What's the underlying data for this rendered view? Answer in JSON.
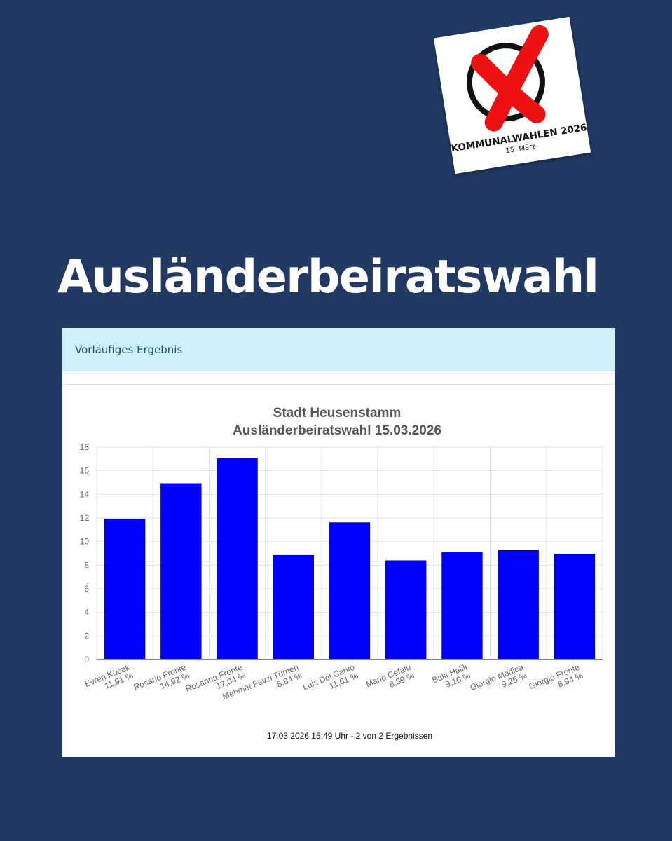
{
  "logo": {
    "title": "KOMMUNALWAHLEN 2026",
    "date": "15. März",
    "icon": "ballot-cross-icon",
    "colors": {
      "cross": "#ee1111",
      "circle": "#111111"
    }
  },
  "page": {
    "headline": "Ausländerbeiratswahl",
    "background": "#213963"
  },
  "panel": {
    "header": "Vorläufiges Ergebnis",
    "header_color": "#cdf0f9"
  },
  "chart_data": {
    "type": "bar",
    "title": "Stadt Heusenstamm",
    "subtitle": "Ausländerbeiratswahl 15.03.2026",
    "categories": [
      "Evren Koçak",
      "Rosario Fronte",
      "Rosanna Fronte",
      "Mehmet Fevzi Tümen",
      "Luis Del Canto",
      "Mario Cefalu",
      "Baki Halili",
      "Giorgio Modica",
      "Giorgio Fronte"
    ],
    "value_labels": [
      "11,91 %",
      "14,92 %",
      "17,04 %",
      "8,84 %",
      "11,61 %",
      "8,39 %",
      "9,10 %",
      "9,25 %",
      "8,94 %"
    ],
    "values": [
      11.91,
      14.92,
      17.04,
      8.84,
      11.61,
      8.39,
      9.1,
      9.25,
      8.94
    ],
    "ylim": [
      0,
      18
    ],
    "yticks": [
      0,
      2,
      4,
      6,
      8,
      10,
      12,
      14,
      16,
      18
    ],
    "grid": true,
    "bar_color": "#0000ff",
    "footer": "17.03.2026 15:49 Uhr - 2 von 2 Ergebnissen"
  }
}
